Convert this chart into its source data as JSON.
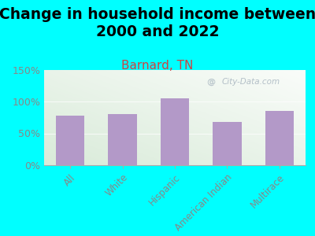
{
  "title": "Change in household income between\n2000 and 2022",
  "subtitle": "Barnard, TN",
  "categories": [
    "All",
    "White",
    "Hispanic",
    "American Indian",
    "Multirace"
  ],
  "values": [
    78,
    80,
    105,
    68,
    85
  ],
  "bar_color": "#b399c8",
  "background_color": "#00FFFF",
  "ylabel_ticks": [
    0,
    50,
    100,
    150
  ],
  "ylabel_labels": [
    "0%",
    "50%",
    "100%",
    "150%"
  ],
  "ylim": [
    0,
    150
  ],
  "title_fontsize": 13.5,
  "subtitle_fontsize": 11,
  "subtitle_color": "#cc4444",
  "tick_color": "#888888",
  "watermark": "City-Data.com",
  "bar_width": 0.55
}
